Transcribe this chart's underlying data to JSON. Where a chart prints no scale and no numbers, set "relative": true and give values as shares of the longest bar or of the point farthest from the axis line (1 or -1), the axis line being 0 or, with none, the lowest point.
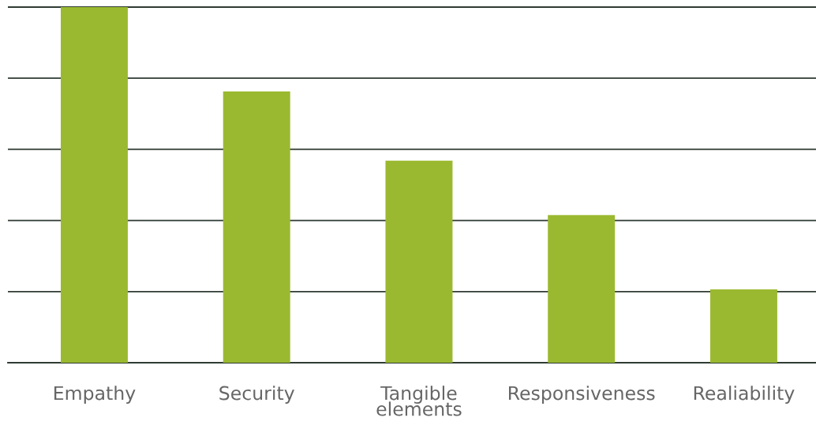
{
  "chart_data": {
    "type": "bar",
    "relative": true,
    "categories": [
      "Empathy",
      "Security",
      "Tangible\nelements",
      "Responsiveness",
      "Realiability"
    ],
    "values": [
      1,
      0.763,
      0.568,
      0.415,
      0.206
    ],
    "color": "#9bb930",
    "grid": "y",
    "tick_labels": "x"
  }
}
